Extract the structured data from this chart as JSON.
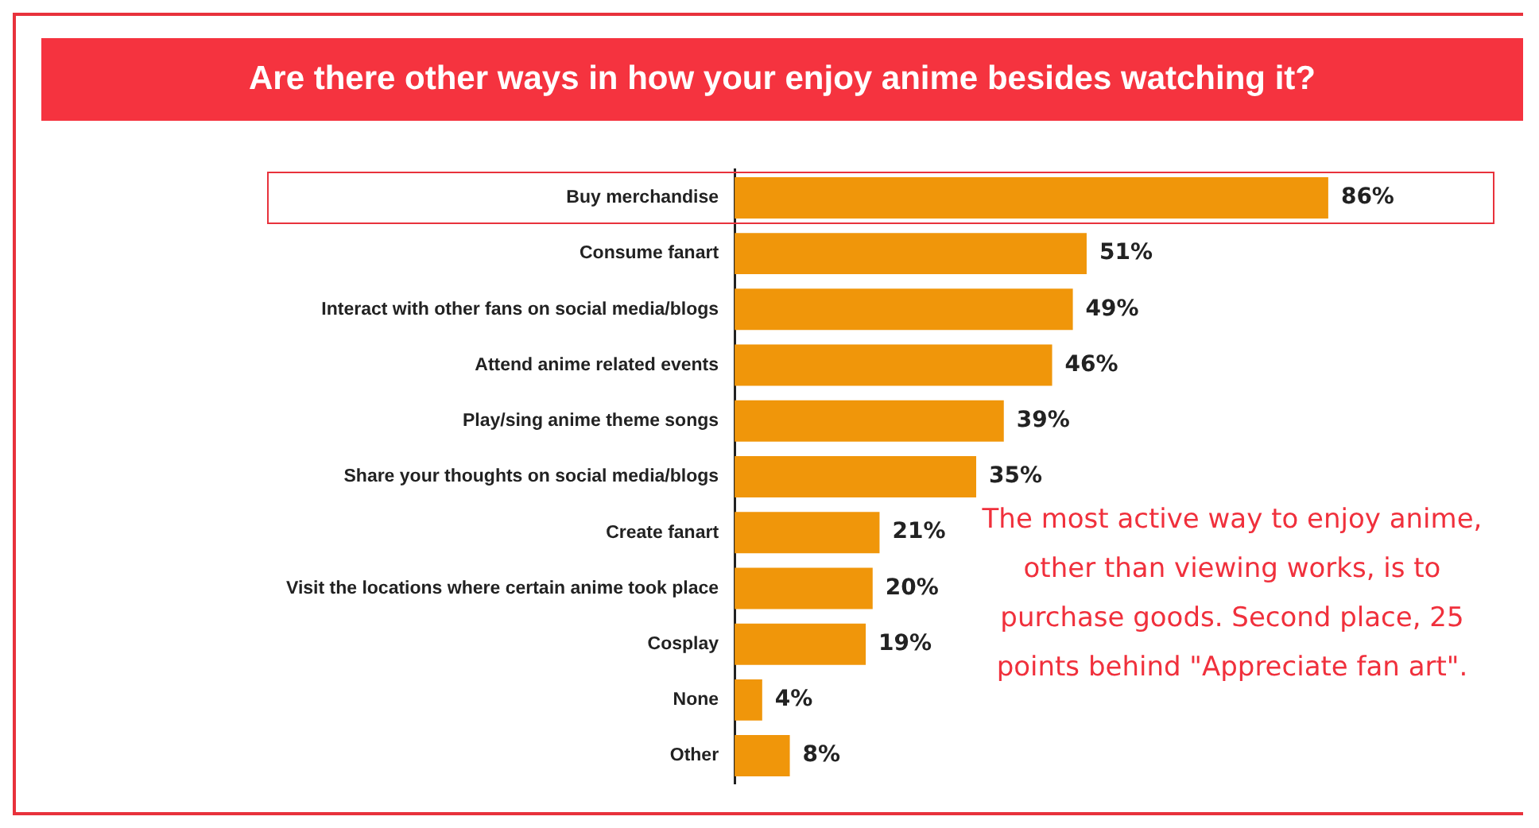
{
  "chart_data": {
    "type": "bar",
    "orientation": "horizontal",
    "title": "Are there other ways in how your enjoy anime besides watching it?",
    "categories": [
      "Buy merchandise",
      "Consume fanart",
      "Interact with other fans on social media/blogs",
      "Attend anime related events",
      "Play/sing anime theme songs",
      "Share your thoughts on social media/blogs",
      "Create fanart",
      "Visit the locations where certain anime took place",
      "Cosplay",
      "None",
      "Other"
    ],
    "values": [
      86,
      51,
      49,
      46,
      39,
      35,
      21,
      20,
      19,
      4,
      8
    ],
    "value_labels": [
      "86%",
      "51%",
      "49%",
      "46%",
      "39%",
      "35%",
      "21%",
      "20%",
      "19%",
      "4%",
      "8%"
    ],
    "color": "#f0960a",
    "legend": false,
    "annotations": [
      "The most active way to enjoy anime, other than viewing works, is to purchase goods. Second place, 25 points behind \"Appreciate fan art\"."
    ]
  }
}
